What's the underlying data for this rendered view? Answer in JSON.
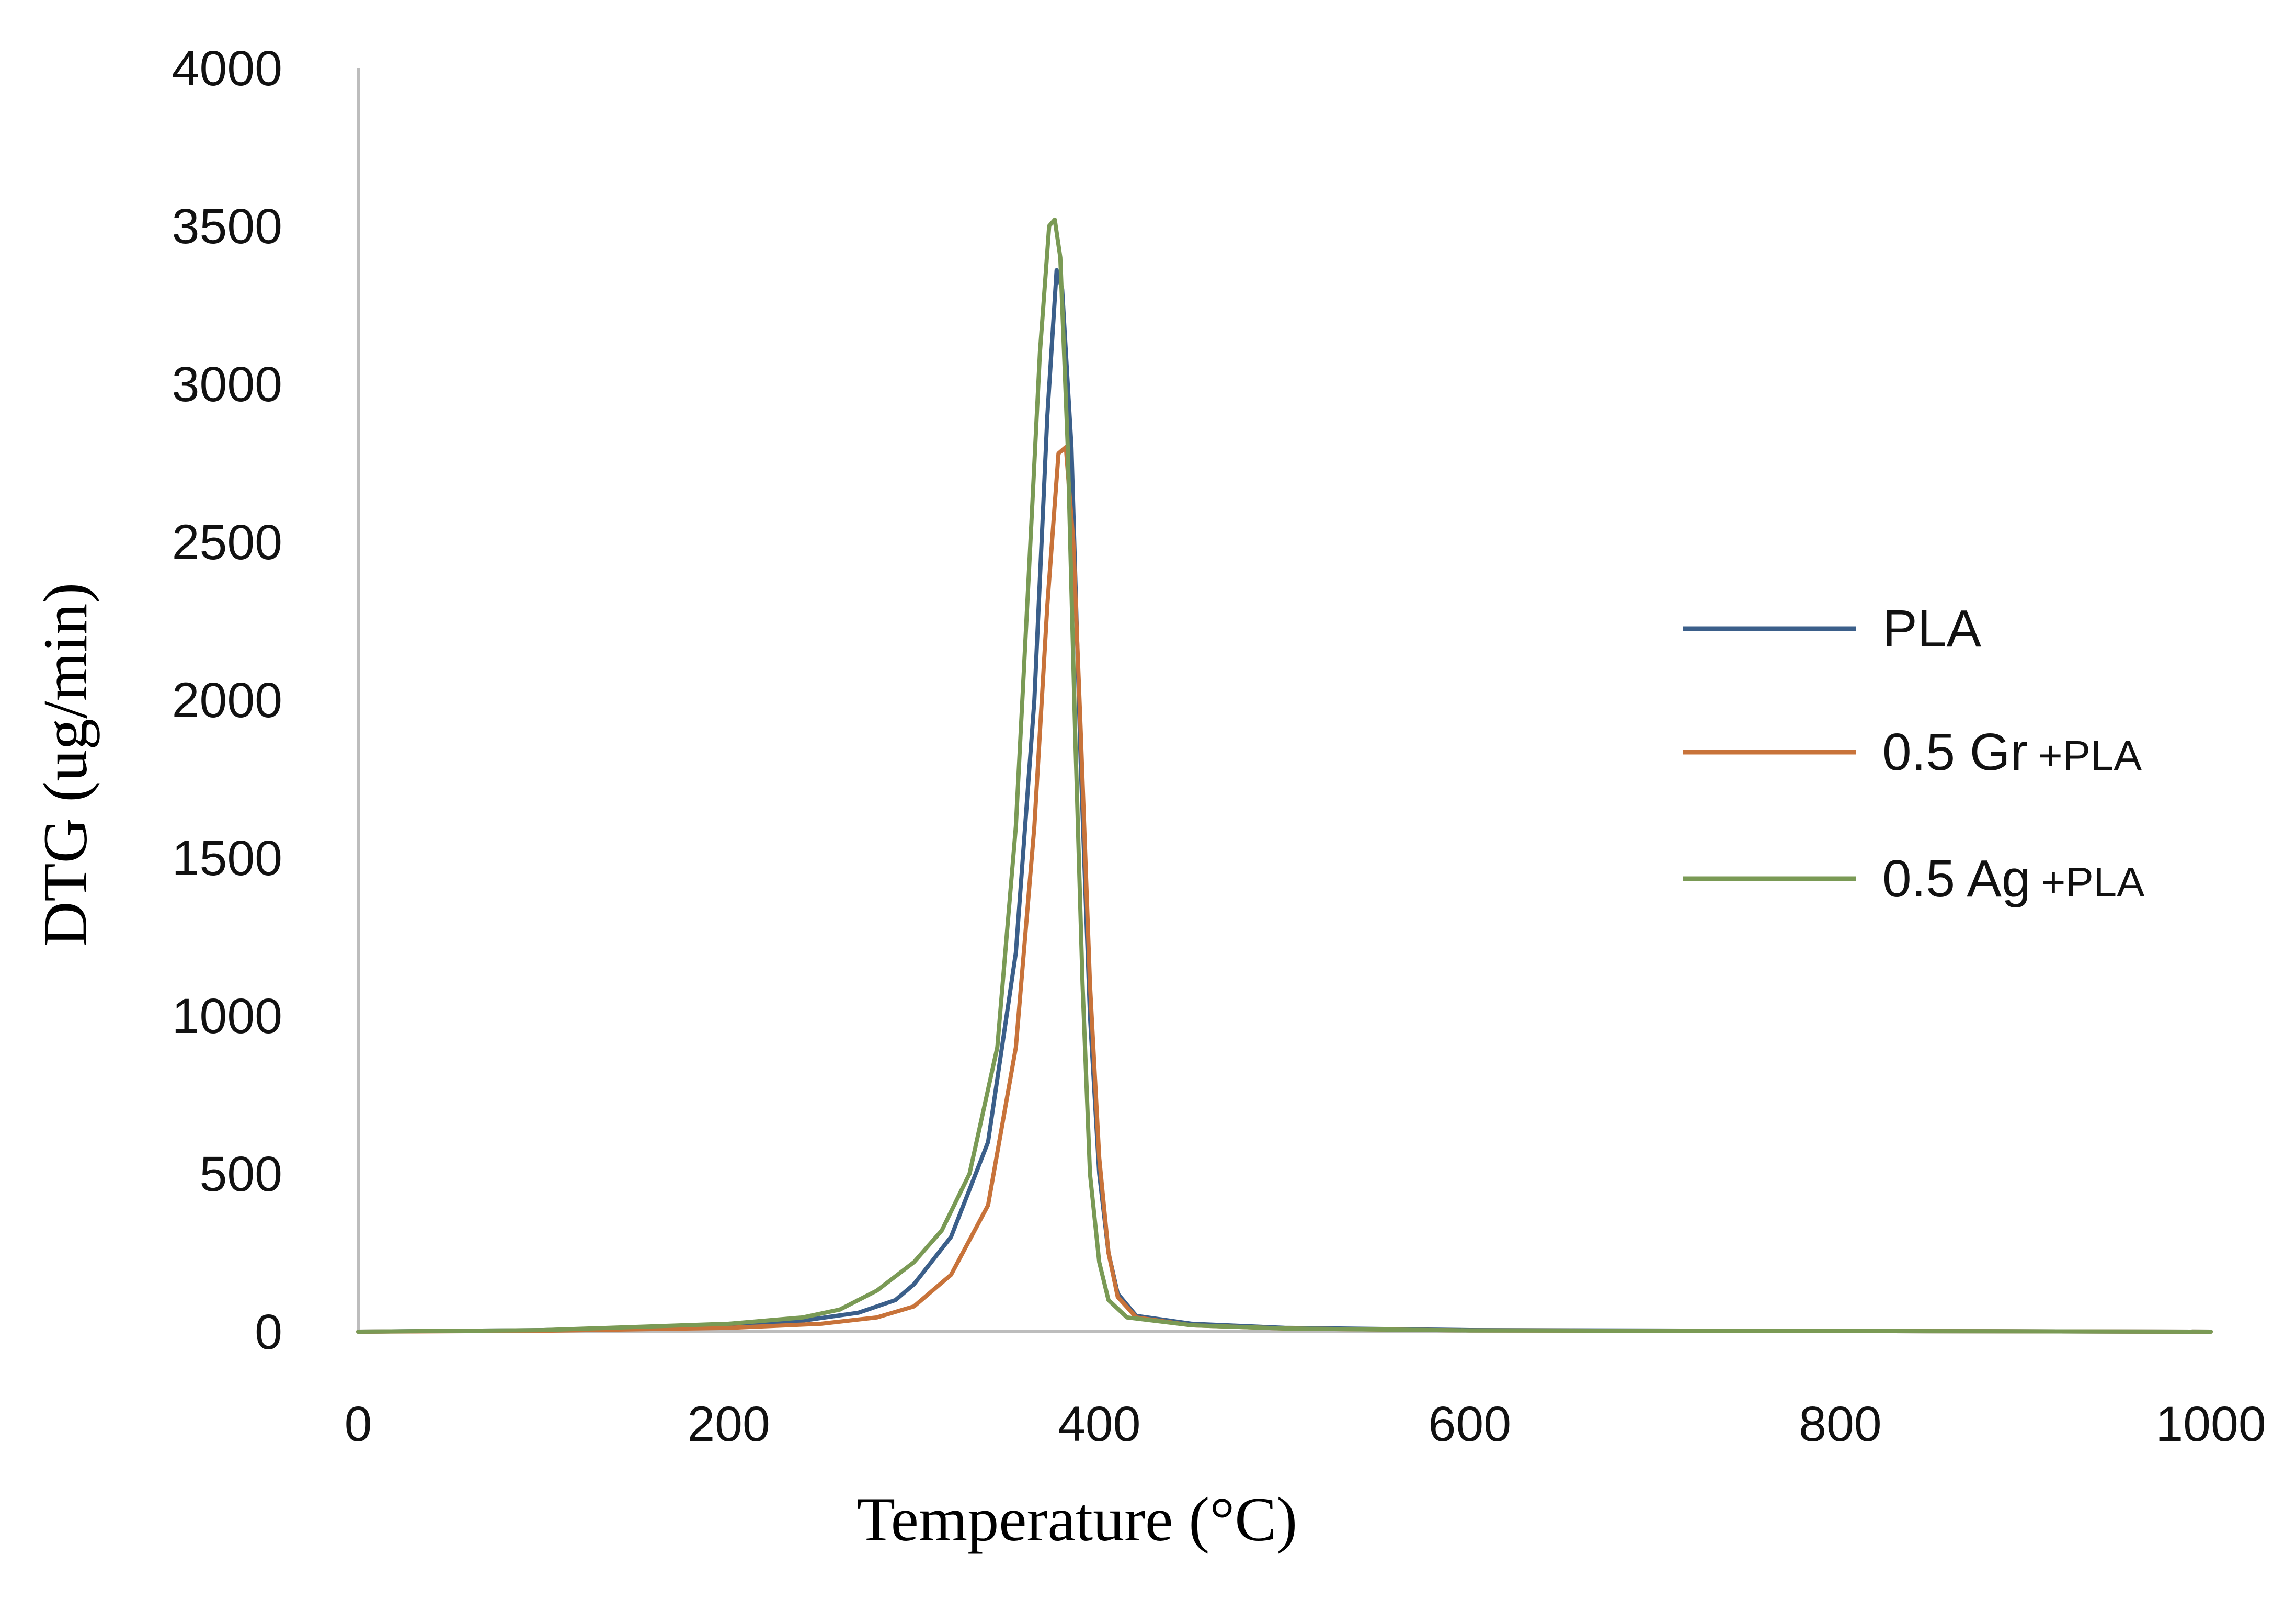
{
  "chart_data": {
    "type": "line",
    "title": "",
    "xlabel": "Temperature (°C)",
    "ylabel": "DTG (ug/min)",
    "xlim": [
      0,
      1000
    ],
    "ylim": [
      0,
      4000
    ],
    "xticks": [
      "0",
      "200",
      "400",
      "600",
      "800",
      "1000"
    ],
    "yticks": [
      "0",
      "500",
      "1000",
      "1500",
      "2000",
      "2500",
      "3000",
      "3500",
      "4000"
    ],
    "grid": false,
    "legend_placement": "right",
    "series": [
      {
        "name": "PLA",
        "name_main": "PLA",
        "name_suffix": "",
        "color": "#3b5f8a",
        "points": [
          [
            0,
            0
          ],
          [
            100,
            5
          ],
          [
            200,
            20
          ],
          [
            240,
            35
          ],
          [
            270,
            60
          ],
          [
            290,
            100
          ],
          [
            300,
            150
          ],
          [
            320,
            300
          ],
          [
            340,
            600
          ],
          [
            355,
            1200
          ],
          [
            365,
            2000
          ],
          [
            372,
            2900
          ],
          [
            377,
            3360
          ],
          [
            380,
            3300
          ],
          [
            385,
            2800
          ],
          [
            390,
            1800
          ],
          [
            395,
            1000
          ],
          [
            400,
            500
          ],
          [
            405,
            250
          ],
          [
            410,
            120
          ],
          [
            420,
            50
          ],
          [
            450,
            25
          ],
          [
            500,
            12
          ],
          [
            600,
            5
          ],
          [
            800,
            2
          ],
          [
            1000,
            0
          ]
        ]
      },
      {
        "name": "0.5 Gr +PLA",
        "name_main": "0.5 Gr",
        "name_suffix": "+PLA",
        "color": "#c8733a",
        "points": [
          [
            0,
            0
          ],
          [
            100,
            3
          ],
          [
            200,
            12
          ],
          [
            250,
            25
          ],
          [
            280,
            45
          ],
          [
            300,
            80
          ],
          [
            320,
            180
          ],
          [
            340,
            400
          ],
          [
            355,
            900
          ],
          [
            365,
            1600
          ],
          [
            372,
            2300
          ],
          [
            378,
            2780
          ],
          [
            382,
            2800
          ],
          [
            386,
            2500
          ],
          [
            390,
            1900
          ],
          [
            395,
            1100
          ],
          [
            400,
            550
          ],
          [
            405,
            250
          ],
          [
            410,
            110
          ],
          [
            420,
            45
          ],
          [
            450,
            20
          ],
          [
            500,
            10
          ],
          [
            600,
            4
          ],
          [
            800,
            2
          ],
          [
            1000,
            0
          ]
        ]
      },
      {
        "name": "0.5 Ag +PLA",
        "name_main": "0.5 Ag",
        "name_suffix": "+PLA",
        "color": "#7a9a55",
        "points": [
          [
            0,
            0
          ],
          [
            100,
            5
          ],
          [
            200,
            25
          ],
          [
            240,
            45
          ],
          [
            260,
            70
          ],
          [
            280,
            130
          ],
          [
            300,
            220
          ],
          [
            315,
            320
          ],
          [
            330,
            500
          ],
          [
            345,
            900
          ],
          [
            355,
            1600
          ],
          [
            362,
            2400
          ],
          [
            368,
            3100
          ],
          [
            373,
            3500
          ],
          [
            376,
            3520
          ],
          [
            379,
            3400
          ],
          [
            383,
            2800
          ],
          [
            387,
            1900
          ],
          [
            391,
            1100
          ],
          [
            395,
            500
          ],
          [
            400,
            220
          ],
          [
            405,
            100
          ],
          [
            415,
            45
          ],
          [
            450,
            20
          ],
          [
            500,
            10
          ],
          [
            600,
            4
          ],
          [
            800,
            2
          ],
          [
            1000,
            0
          ]
        ]
      }
    ]
  }
}
